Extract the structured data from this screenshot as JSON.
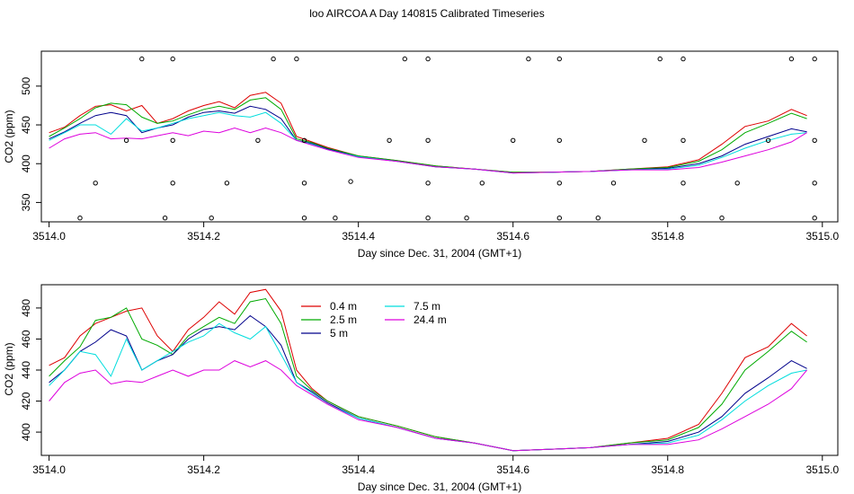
{
  "title": "loo AIRCOA A  Day 140815  Calibrated Timeseries",
  "chart_data": [
    {
      "type": "scatter+line",
      "xlabel": "Day since Dec. 31, 2004 (GMT+1)",
      "ylabel": "CO2 (ppm)",
      "xlim": [
        3513.99,
        3515.02
      ],
      "ylim": [
        325,
        545
      ],
      "xticks": [
        3514.0,
        3514.2,
        3514.4,
        3514.6,
        3514.8,
        3515.0
      ],
      "xtick_labels": [
        "3514.0",
        "3514.2",
        "3514.4",
        "3514.6",
        "3514.8",
        "3515.0"
      ],
      "yticks": [
        350,
        400,
        450,
        500
      ],
      "ytick_labels": [
        "350",
        "400",
        "450",
        "500"
      ],
      "grid": false,
      "markers": [
        [
          3514.04,
          330
        ],
        [
          3514.06,
          375
        ],
        [
          3514.1,
          430
        ],
        [
          3514.12,
          535
        ],
        [
          3514.16,
          535
        ],
        [
          3514.16,
          430
        ],
        [
          3514.16,
          375
        ],
        [
          3514.15,
          330
        ],
        [
          3514.21,
          330
        ],
        [
          3514.23,
          375
        ],
        [
          3514.27,
          430
        ],
        [
          3514.29,
          535
        ],
        [
          3514.32,
          535
        ],
        [
          3514.33,
          430
        ],
        [
          3514.33,
          375
        ],
        [
          3514.33,
          330
        ],
        [
          3514.37,
          330
        ],
        [
          3514.39,
          377
        ],
        [
          3514.44,
          430
        ],
        [
          3514.46,
          535
        ],
        [
          3514.49,
          535
        ],
        [
          3514.49,
          430
        ],
        [
          3514.49,
          375
        ],
        [
          3514.49,
          330
        ],
        [
          3514.54,
          330
        ],
        [
          3514.56,
          375
        ],
        [
          3514.6,
          430
        ],
        [
          3514.62,
          535
        ],
        [
          3514.66,
          535
        ],
        [
          3514.66,
          430
        ],
        [
          3514.66,
          375
        ],
        [
          3514.66,
          330
        ],
        [
          3514.71,
          330
        ],
        [
          3514.73,
          375
        ],
        [
          3514.77,
          430
        ],
        [
          3514.79,
          535
        ],
        [
          3514.82,
          535
        ],
        [
          3514.82,
          430
        ],
        [
          3514.82,
          375
        ],
        [
          3514.82,
          330
        ],
        [
          3514.87,
          330
        ],
        [
          3514.89,
          375
        ],
        [
          3514.93,
          430
        ],
        [
          3514.96,
          535
        ],
        [
          3514.99,
          535
        ],
        [
          3514.99,
          430
        ],
        [
          3514.99,
          375
        ],
        [
          3514.99,
          330
        ]
      ],
      "series": [
        {
          "color": "#dd0000",
          "x": [
            3514.0,
            3514.02,
            3514.04,
            3514.06,
            3514.08,
            3514.1,
            3514.12,
            3514.14,
            3514.16,
            3514.18,
            3514.2,
            3514.22,
            3514.24,
            3514.26,
            3514.28,
            3514.3,
            3514.32,
            3514.34,
            3514.36,
            3514.4,
            3514.45,
            3514.5,
            3514.55,
            3514.6,
            3514.65,
            3514.7,
            3514.75,
            3514.8,
            3514.84,
            3514.87,
            3514.9,
            3514.93,
            3514.96,
            3514.98
          ],
          "values": [
            440,
            447,
            462,
            474,
            476,
            468,
            475,
            452,
            458,
            468,
            475,
            480,
            472,
            488,
            492,
            478,
            435,
            428,
            421,
            410,
            404,
            397,
            393,
            389,
            389,
            390,
            393,
            396,
            405,
            425,
            448,
            455,
            470,
            462
          ]
        },
        {
          "color": "#00aa00",
          "x": [
            3514.0,
            3514.02,
            3514.04,
            3514.06,
            3514.08,
            3514.1,
            3514.12,
            3514.14,
            3514.16,
            3514.18,
            3514.2,
            3514.22,
            3514.24,
            3514.26,
            3514.28,
            3514.3,
            3514.32,
            3514.34,
            3514.36,
            3514.4,
            3514.45,
            3514.5,
            3514.55,
            3514.6,
            3514.65,
            3514.7,
            3514.75,
            3514.8,
            3514.84,
            3514.87,
            3514.9,
            3514.93,
            3514.96,
            3514.98
          ],
          "values": [
            435,
            446,
            458,
            472,
            478,
            476,
            460,
            452,
            455,
            463,
            470,
            474,
            470,
            482,
            485,
            470,
            432,
            427,
            420,
            410,
            404,
            397,
            393,
            389,
            389,
            390,
            393,
            395,
            403,
            418,
            440,
            452,
            465,
            458
          ]
        },
        {
          "color": "#00008b",
          "x": [
            3514.0,
            3514.02,
            3514.04,
            3514.06,
            3514.08,
            3514.1,
            3514.12,
            3514.14,
            3514.16,
            3514.18,
            3514.2,
            3514.22,
            3514.24,
            3514.26,
            3514.28,
            3514.3,
            3514.32,
            3514.34,
            3514.36,
            3514.4,
            3514.45,
            3514.5,
            3514.55,
            3514.6,
            3514.65,
            3514.7,
            3514.75,
            3514.8,
            3514.84,
            3514.87,
            3514.9,
            3514.93,
            3514.96,
            3514.98
          ],
          "values": [
            432,
            441,
            452,
            462,
            466,
            462,
            440,
            446,
            450,
            460,
            466,
            468,
            465,
            474,
            470,
            458,
            430,
            426,
            419,
            409,
            403,
            396,
            393,
            388,
            389,
            390,
            392,
            394,
            400,
            410,
            425,
            435,
            445,
            441
          ]
        },
        {
          "color": "#00dddd",
          "x": [
            3514.0,
            3514.02,
            3514.04,
            3514.06,
            3514.08,
            3514.1,
            3514.12,
            3514.14,
            3514.16,
            3514.18,
            3514.2,
            3514.22,
            3514.24,
            3514.26,
            3514.28,
            3514.3,
            3514.32,
            3514.34,
            3514.36,
            3514.4,
            3514.45,
            3514.5,
            3514.55,
            3514.6,
            3514.65,
            3514.7,
            3514.75,
            3514.8,
            3514.84,
            3514.87,
            3514.9,
            3514.93,
            3514.96,
            3514.98
          ],
          "values": [
            430,
            440,
            450,
            450,
            438,
            458,
            442,
            446,
            452,
            458,
            462,
            466,
            462,
            460,
            466,
            452,
            430,
            425,
            418,
            409,
            403,
            396,
            393,
            388,
            389,
            390,
            392,
            393,
            398,
            408,
            420,
            430,
            438,
            440
          ]
        },
        {
          "color": "#dd00dd",
          "x": [
            3514.0,
            3514.02,
            3514.04,
            3514.06,
            3514.08,
            3514.1,
            3514.12,
            3514.14,
            3514.16,
            3514.18,
            3514.2,
            3514.22,
            3514.24,
            3514.26,
            3514.28,
            3514.3,
            3514.32,
            3514.34,
            3514.36,
            3514.4,
            3514.45,
            3514.5,
            3514.55,
            3514.6,
            3514.65,
            3514.7,
            3514.75,
            3514.8,
            3514.84,
            3514.87,
            3514.9,
            3514.93,
            3514.96,
            3514.98
          ],
          "values": [
            420,
            432,
            438,
            440,
            432,
            433,
            432,
            436,
            440,
            436,
            442,
            440,
            446,
            440,
            446,
            440,
            430,
            424,
            418,
            408,
            403,
            396,
            393,
            388,
            389,
            390,
            392,
            392,
            395,
            402,
            410,
            418,
            428,
            440
          ]
        }
      ]
    },
    {
      "type": "line",
      "xlabel": "Day since Dec. 31, 2004 (GMT+1)",
      "ylabel": "CO2 (ppm)",
      "xlim": [
        3513.99,
        3515.02
      ],
      "ylim": [
        385,
        495
      ],
      "xticks": [
        3514.0,
        3514.2,
        3514.4,
        3514.6,
        3514.8,
        3515.0
      ],
      "xtick_labels": [
        "3514.0",
        "3514.2",
        "3514.4",
        "3514.6",
        "3514.8",
        "3515.0"
      ],
      "yticks": [
        400,
        420,
        440,
        460,
        480
      ],
      "ytick_labels": [
        "400",
        "420",
        "440",
        "460",
        "480"
      ],
      "grid": false,
      "legend_position": "top-center",
      "series": [
        {
          "name": "0.4 m",
          "color": "#dd0000",
          "x": [
            3514.0,
            3514.02,
            3514.04,
            3514.06,
            3514.08,
            3514.1,
            3514.12,
            3514.14,
            3514.16,
            3514.18,
            3514.2,
            3514.22,
            3514.24,
            3514.26,
            3514.28,
            3514.3,
            3514.32,
            3514.34,
            3514.36,
            3514.4,
            3514.45,
            3514.5,
            3514.55,
            3514.6,
            3514.65,
            3514.7,
            3514.75,
            3514.8,
            3514.84,
            3514.87,
            3514.9,
            3514.93,
            3514.96,
            3514.98
          ],
          "values": [
            443,
            448,
            462,
            470,
            474,
            478,
            480,
            462,
            452,
            466,
            474,
            484,
            476,
            490,
            492,
            478,
            440,
            428,
            420,
            410,
            404,
            397,
            393,
            388,
            389,
            390,
            393,
            396,
            405,
            425,
            448,
            455,
            470,
            462
          ]
        },
        {
          "name": "2.5 m",
          "color": "#00aa00",
          "x": [
            3514.0,
            3514.02,
            3514.04,
            3514.06,
            3514.08,
            3514.1,
            3514.12,
            3514.14,
            3514.16,
            3514.18,
            3514.2,
            3514.22,
            3514.24,
            3514.26,
            3514.28,
            3514.3,
            3514.32,
            3514.34,
            3514.36,
            3514.4,
            3514.45,
            3514.5,
            3514.55,
            3514.6,
            3514.65,
            3514.7,
            3514.75,
            3514.8,
            3514.84,
            3514.87,
            3514.9,
            3514.93,
            3514.96,
            3514.98
          ],
          "values": [
            436,
            446,
            455,
            472,
            474,
            480,
            460,
            456,
            450,
            462,
            468,
            474,
            470,
            484,
            486,
            470,
            436,
            427,
            420,
            410,
            404,
            397,
            393,
            388,
            389,
            390,
            393,
            395,
            403,
            418,
            440,
            452,
            465,
            458
          ]
        },
        {
          "name": "5 m",
          "color": "#00008b",
          "x": [
            3514.0,
            3514.02,
            3514.04,
            3514.06,
            3514.08,
            3514.1,
            3514.12,
            3514.14,
            3514.16,
            3514.18,
            3514.2,
            3514.22,
            3514.24,
            3514.26,
            3514.28,
            3514.3,
            3514.32,
            3514.34,
            3514.36,
            3514.4,
            3514.45,
            3514.5,
            3514.55,
            3514.6,
            3514.65,
            3514.7,
            3514.75,
            3514.8,
            3514.84,
            3514.87,
            3514.9,
            3514.93,
            3514.96,
            3514.98
          ],
          "values": [
            432,
            440,
            452,
            458,
            466,
            462,
            440,
            446,
            450,
            460,
            466,
            468,
            466,
            475,
            468,
            456,
            432,
            426,
            419,
            409,
            403,
            396,
            393,
            388,
            389,
            390,
            392,
            394,
            400,
            410,
            425,
            435,
            446,
            441
          ]
        },
        {
          "name": "7.5 m",
          "color": "#00dddd",
          "x": [
            3514.0,
            3514.02,
            3514.04,
            3514.06,
            3514.08,
            3514.1,
            3514.12,
            3514.14,
            3514.16,
            3514.18,
            3514.2,
            3514.22,
            3514.24,
            3514.26,
            3514.28,
            3514.3,
            3514.32,
            3514.34,
            3514.36,
            3514.4,
            3514.45,
            3514.5,
            3514.55,
            3514.6,
            3514.65,
            3514.7,
            3514.75,
            3514.8,
            3514.84,
            3514.87,
            3514.9,
            3514.93,
            3514.96,
            3514.98
          ],
          "values": [
            430,
            440,
            452,
            450,
            436,
            460,
            440,
            446,
            452,
            458,
            462,
            470,
            464,
            460,
            468,
            450,
            432,
            425,
            418,
            409,
            403,
            396,
            393,
            388,
            389,
            390,
            392,
            393,
            398,
            408,
            420,
            430,
            438,
            440
          ]
        },
        {
          "name": "24.4 m",
          "color": "#dd00dd",
          "x": [
            3514.0,
            3514.02,
            3514.04,
            3514.06,
            3514.08,
            3514.1,
            3514.12,
            3514.14,
            3514.16,
            3514.18,
            3514.2,
            3514.22,
            3514.24,
            3514.26,
            3514.28,
            3514.3,
            3514.32,
            3514.34,
            3514.36,
            3514.4,
            3514.45,
            3514.5,
            3514.55,
            3514.6,
            3514.65,
            3514.7,
            3514.75,
            3514.8,
            3514.84,
            3514.87,
            3514.9,
            3514.93,
            3514.96,
            3514.98
          ],
          "values": [
            420,
            432,
            438,
            440,
            431,
            433,
            432,
            436,
            440,
            436,
            440,
            440,
            446,
            442,
            446,
            440,
            430,
            424,
            418,
            408,
            403,
            396,
            393,
            388,
            389,
            390,
            392,
            392,
            395,
            402,
            410,
            418,
            428,
            440
          ]
        }
      ]
    }
  ]
}
